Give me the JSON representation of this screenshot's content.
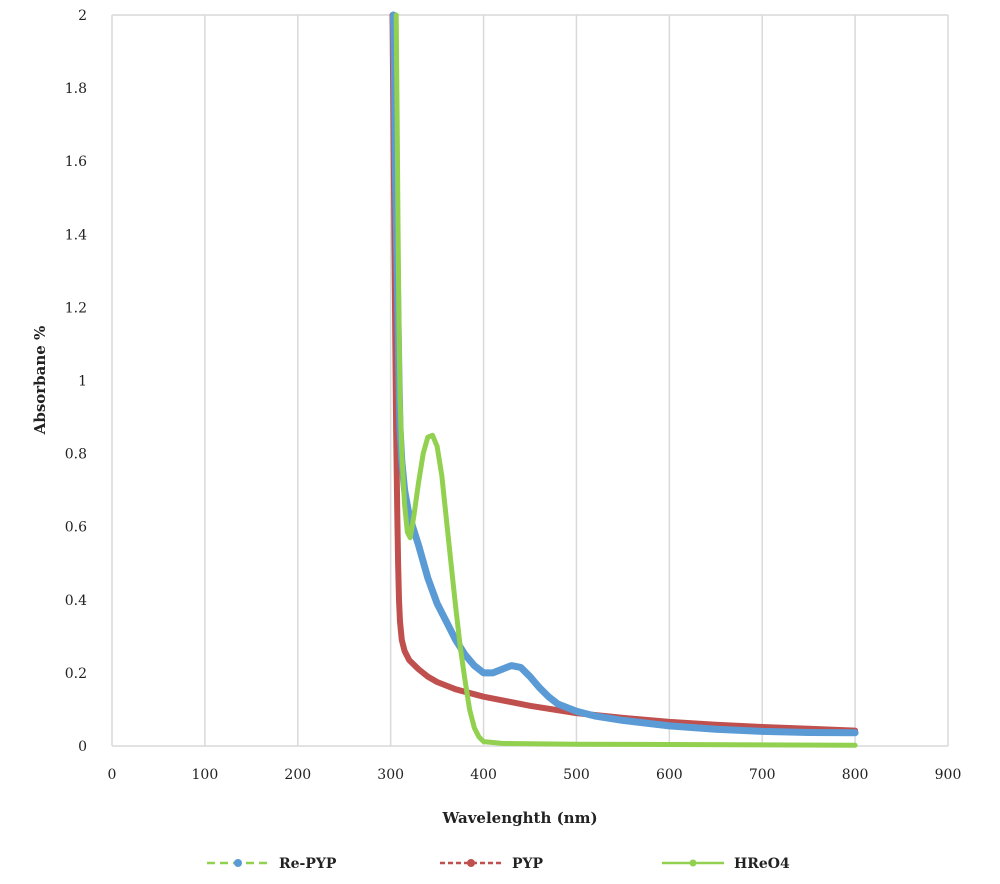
{
  "chart_data": {
    "type": "line",
    "xlabel": "Wavelenghth (nm)",
    "ylabel": "Absorbane %",
    "xlim": [
      0,
      900
    ],
    "ylim": [
      0,
      2
    ],
    "x_ticks": [
      0,
      100,
      200,
      300,
      400,
      500,
      600,
      700,
      800,
      900
    ],
    "y_ticks": [
      0,
      0.2,
      0.4,
      0.6,
      0.8,
      1,
      1.2,
      1.4,
      1.6,
      1.8,
      2
    ],
    "y_tick_labels": [
      "0",
      "0.2",
      "0.4",
      "0.6",
      "0.8",
      "1",
      "1.2",
      "1.4",
      "1.6",
      "1.8",
      "2"
    ],
    "grid": "vertical-only",
    "legend_position": "bottom",
    "series": [
      {
        "name": "Re-PYP",
        "color": "#5b9bd5",
        "legend_line_color": "#92d050",
        "points": [
          [
            303,
            2.0
          ],
          [
            304,
            1.86
          ],
          [
            305,
            1.6
          ],
          [
            306,
            1.45
          ],
          [
            307,
            1.3
          ],
          [
            308,
            1.15
          ],
          [
            309,
            1.0
          ],
          [
            310,
            0.87
          ],
          [
            312,
            0.78
          ],
          [
            315,
            0.7
          ],
          [
            320,
            0.63
          ],
          [
            330,
            0.55
          ],
          [
            340,
            0.46
          ],
          [
            350,
            0.39
          ],
          [
            360,
            0.34
          ],
          [
            370,
            0.29
          ],
          [
            380,
            0.25
          ],
          [
            390,
            0.22
          ],
          [
            400,
            0.2
          ],
          [
            410,
            0.2
          ],
          [
            420,
            0.21
          ],
          [
            430,
            0.22
          ],
          [
            440,
            0.215
          ],
          [
            450,
            0.19
          ],
          [
            460,
            0.16
          ],
          [
            470,
            0.135
          ],
          [
            480,
            0.115
          ],
          [
            500,
            0.095
          ],
          [
            520,
            0.082
          ],
          [
            550,
            0.07
          ],
          [
            600,
            0.055
          ],
          [
            650,
            0.046
          ],
          [
            700,
            0.04
          ],
          [
            750,
            0.037
          ],
          [
            800,
            0.036
          ]
        ]
      },
      {
        "name": "PYP",
        "color": "#c0504d",
        "points": [
          [
            302,
            2.0
          ],
          [
            303,
            1.7
          ],
          [
            304,
            1.4
          ],
          [
            305,
            1.1
          ],
          [
            306,
            0.85
          ],
          [
            307,
            0.65
          ],
          [
            308,
            0.5
          ],
          [
            309,
            0.4
          ],
          [
            310,
            0.34
          ],
          [
            312,
            0.29
          ],
          [
            315,
            0.26
          ],
          [
            320,
            0.235
          ],
          [
            330,
            0.21
          ],
          [
            340,
            0.19
          ],
          [
            350,
            0.175
          ],
          [
            370,
            0.155
          ],
          [
            400,
            0.135
          ],
          [
            450,
            0.11
          ],
          [
            500,
            0.09
          ],
          [
            550,
            0.077
          ],
          [
            600,
            0.066
          ],
          [
            650,
            0.058
          ],
          [
            700,
            0.052
          ],
          [
            750,
            0.047
          ],
          [
            800,
            0.042
          ]
        ]
      },
      {
        "name": "HReO4",
        "color": "#92d050",
        "points": [
          [
            306,
            2.0
          ],
          [
            307,
            1.7
          ],
          [
            308,
            1.4
          ],
          [
            309,
            1.15
          ],
          [
            310,
            0.95
          ],
          [
            312,
            0.8
          ],
          [
            315,
            0.66
          ],
          [
            318,
            0.585
          ],
          [
            321,
            0.57
          ],
          [
            325,
            0.63
          ],
          [
            330,
            0.72
          ],
          [
            335,
            0.8
          ],
          [
            340,
            0.845
          ],
          [
            345,
            0.85
          ],
          [
            350,
            0.82
          ],
          [
            355,
            0.74
          ],
          [
            360,
            0.62
          ],
          [
            365,
            0.5
          ],
          [
            370,
            0.38
          ],
          [
            375,
            0.27
          ],
          [
            380,
            0.18
          ],
          [
            385,
            0.1
          ],
          [
            390,
            0.05
          ],
          [
            395,
            0.025
          ],
          [
            400,
            0.012
          ],
          [
            420,
            0.007
          ],
          [
            450,
            0.006
          ],
          [
            500,
            0.005
          ],
          [
            600,
            0.004
          ],
          [
            700,
            0.003
          ],
          [
            800,
            0.002
          ]
        ]
      }
    ]
  }
}
